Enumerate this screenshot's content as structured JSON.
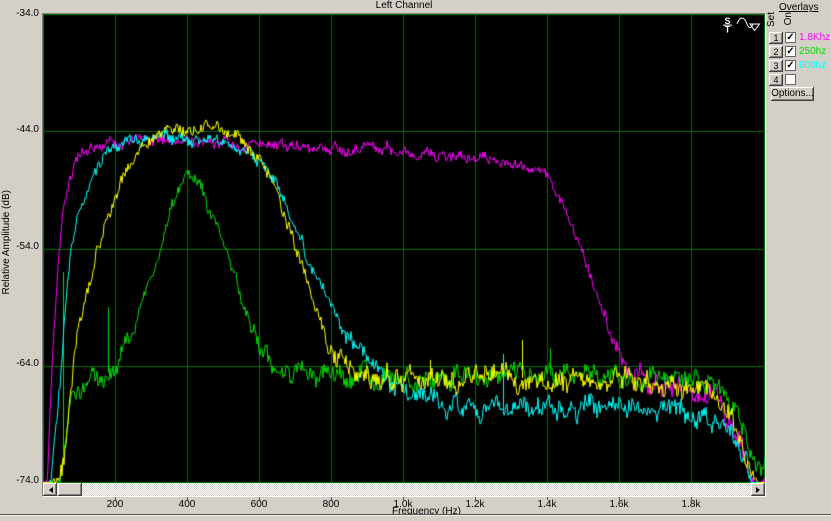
{
  "title": "Left Channel",
  "axes": {
    "y_label": "Relative Amplitude (dB)",
    "x_label": "Frequency (Hz)",
    "y_ticks": [
      "-34.0",
      "-44.0",
      "-54.0",
      "-64.0",
      "-74.0"
    ],
    "x_ticks": [
      "200",
      "400",
      "600",
      "800",
      "1.0k",
      "1.2k",
      "1.4k",
      "1.6k",
      "1.8k"
    ]
  },
  "overlays_panel": {
    "header": "Overlays",
    "col_set": "Set",
    "col_on": "On",
    "rows": [
      {
        "num": "1",
        "checked": true,
        "label": "1.8Khz",
        "color": "#ff00ff"
      },
      {
        "num": "2",
        "checked": true,
        "label": "250hz",
        "color": "#00dd00"
      },
      {
        "num": "3",
        "checked": true,
        "label": "600hz",
        "color": "#00ffff"
      },
      {
        "num": "4",
        "checked": false,
        "label": "",
        "color": ""
      }
    ],
    "options_button": "Options..."
  },
  "chart_data": {
    "type": "line",
    "title": "Left Channel",
    "xlabel": "Frequency (Hz)",
    "ylabel": "Relative Amplitude (dB)",
    "xlim": [
      0,
      2005
    ],
    "ylim": [
      -74,
      -34
    ],
    "grid_color": "#007000",
    "x_gridlines": [
      200,
      400,
      600,
      800,
      1000,
      1200,
      1400,
      1600,
      1800
    ],
    "y_gridlines": [
      -44,
      -54,
      -64
    ],
    "series": [
      {
        "name": "1.8Khz",
        "color": "#ff00ff",
        "seed": 11,
        "noise": 0.5,
        "anchors": [
          [
            0,
            -75
          ],
          [
            12,
            -74
          ],
          [
            20,
            -67
          ],
          [
            30,
            -61
          ],
          [
            42,
            -55
          ],
          [
            55,
            -51
          ],
          [
            70,
            -48.5
          ],
          [
            85,
            -47
          ],
          [
            100,
            -46.2
          ],
          [
            130,
            -45.6
          ],
          [
            160,
            -45.2
          ],
          [
            200,
            -45
          ],
          [
            260,
            -44.8
          ],
          [
            330,
            -44.7
          ],
          [
            400,
            -44.9
          ],
          [
            500,
            -45
          ],
          [
            600,
            -45.2
          ],
          [
            700,
            -45.4
          ],
          [
            800,
            -45.4
          ],
          [
            900,
            -45.3
          ],
          [
            1000,
            -45.6
          ],
          [
            1100,
            -45.9
          ],
          [
            1200,
            -46.2
          ],
          [
            1300,
            -46.6
          ],
          [
            1360,
            -47
          ],
          [
            1410,
            -48.2
          ],
          [
            1450,
            -50.5
          ],
          [
            1480,
            -53
          ],
          [
            1510,
            -55.5
          ],
          [
            1540,
            -58
          ],
          [
            1575,
            -61
          ],
          [
            1610,
            -63.5
          ],
          [
            1645,
            -65
          ],
          [
            1700,
            -65.6
          ],
          [
            1760,
            -65.9
          ],
          [
            1820,
            -66.3
          ],
          [
            1870,
            -67
          ],
          [
            1905,
            -68.5
          ],
          [
            1935,
            -70.5
          ],
          [
            1955,
            -72.5
          ],
          [
            1970,
            -74.5
          ],
          [
            2010,
            -75
          ]
        ],
        "spikes": []
      },
      {
        "name": "250hz",
        "color": "#00dd00",
        "seed": 22,
        "noise": 0.55,
        "anchors": [
          [
            0,
            -75
          ],
          [
            48,
            -74
          ],
          [
            58,
            -71
          ],
          [
            70,
            -67.5
          ],
          [
            85,
            -65.8
          ],
          [
            110,
            -65.3
          ],
          [
            140,
            -65
          ],
          [
            170,
            -64.8
          ],
          [
            200,
            -64.2
          ],
          [
            230,
            -62.3
          ],
          [
            260,
            -60
          ],
          [
            290,
            -57.5
          ],
          [
            320,
            -55
          ],
          [
            345,
            -52
          ],
          [
            370,
            -49.5
          ],
          [
            390,
            -48
          ],
          [
            405,
            -47.3
          ],
          [
            425,
            -47.8
          ],
          [
            450,
            -49.5
          ],
          [
            475,
            -51.5
          ],
          [
            500,
            -53.5
          ],
          [
            525,
            -55.5
          ],
          [
            550,
            -58
          ],
          [
            575,
            -60.5
          ],
          [
            600,
            -62.3
          ],
          [
            630,
            -63.8
          ],
          [
            665,
            -64.6
          ],
          [
            720,
            -64.9
          ],
          [
            800,
            -65
          ],
          [
            900,
            -64.9
          ],
          [
            1000,
            -65
          ],
          [
            1100,
            -64.9
          ],
          [
            1200,
            -65.1
          ],
          [
            1300,
            -64.9
          ],
          [
            1400,
            -64.8
          ],
          [
            1500,
            -64.9
          ],
          [
            1600,
            -64.9
          ],
          [
            1700,
            -65
          ],
          [
            1780,
            -65.2
          ],
          [
            1840,
            -65.6
          ],
          [
            1890,
            -66.5
          ],
          [
            1925,
            -68
          ],
          [
            1950,
            -70
          ],
          [
            1975,
            -72
          ],
          [
            2010,
            -72.5
          ]
        ],
        "spikes": [
          [
            56,
            -56
          ],
          [
            181,
            -59
          ],
          [
            1408,
            -62.5
          ]
        ]
      },
      {
        "name": "600hz",
        "color": "#00ffff",
        "seed": 33,
        "noise": 0.5,
        "anchors": [
          [
            0,
            -75
          ],
          [
            22,
            -74
          ],
          [
            35,
            -69
          ],
          [
            50,
            -64
          ],
          [
            65,
            -58
          ],
          [
            80,
            -54
          ],
          [
            95,
            -51.5
          ],
          [
            115,
            -49.5
          ],
          [
            140,
            -48
          ],
          [
            170,
            -46.3
          ],
          [
            200,
            -45.4
          ],
          [
            240,
            -45
          ],
          [
            280,
            -44.8
          ],
          [
            330,
            -44.6
          ],
          [
            380,
            -44.5
          ],
          [
            430,
            -44.6
          ],
          [
            480,
            -44.8
          ],
          [
            530,
            -45.1
          ],
          [
            570,
            -45.6
          ],
          [
            610,
            -46.8
          ],
          [
            645,
            -48.5
          ],
          [
            680,
            -50.8
          ],
          [
            715,
            -53.3
          ],
          [
            750,
            -55.8
          ],
          [
            785,
            -58
          ],
          [
            820,
            -60
          ],
          [
            855,
            -61.8
          ],
          [
            890,
            -63.2
          ],
          [
            930,
            -64.6
          ],
          [
            980,
            -65.9
          ],
          [
            1040,
            -66.8
          ],
          [
            1100,
            -67.3
          ],
          [
            1200,
            -67.6
          ],
          [
            1300,
            -67.8
          ],
          [
            1400,
            -67.5
          ],
          [
            1500,
            -67.8
          ],
          [
            1600,
            -67.6
          ],
          [
            1700,
            -67.8
          ],
          [
            1780,
            -67.9
          ],
          [
            1840,
            -68.2
          ],
          [
            1890,
            -69
          ],
          [
            1925,
            -70.5
          ],
          [
            1950,
            -72
          ],
          [
            1970,
            -74.5
          ],
          [
            2010,
            -75
          ]
        ],
        "spikes": [
          [
            1278,
            -63
          ]
        ]
      },
      {
        "name": "",
        "color": "#ffff00",
        "seed": 44,
        "noise": 0.55,
        "anchors": [
          [
            0,
            -75
          ],
          [
            40,
            -74.5
          ],
          [
            60,
            -72
          ],
          [
            75,
            -66
          ],
          [
            90,
            -62.5
          ],
          [
            105,
            -60
          ],
          [
            125,
            -57.5
          ],
          [
            150,
            -54.5
          ],
          [
            175,
            -51.8
          ],
          [
            200,
            -49.5
          ],
          [
            230,
            -47.5
          ],
          [
            260,
            -46
          ],
          [
            290,
            -45
          ],
          [
            320,
            -44.2
          ],
          [
            360,
            -43.9
          ],
          [
            400,
            -43.7
          ],
          [
            440,
            -43.6
          ],
          [
            480,
            -43.8
          ],
          [
            520,
            -44.2
          ],
          [
            560,
            -44.9
          ],
          [
            600,
            -46.3
          ],
          [
            630,
            -48
          ],
          [
            665,
            -50.5
          ],
          [
            700,
            -53.5
          ],
          [
            735,
            -57
          ],
          [
            770,
            -60
          ],
          [
            805,
            -62.5
          ],
          [
            840,
            -64
          ],
          [
            880,
            -64.8
          ],
          [
            950,
            -65.1
          ],
          [
            1100,
            -65.2
          ],
          [
            1250,
            -65
          ],
          [
            1400,
            -65.1
          ],
          [
            1550,
            -65.2
          ],
          [
            1700,
            -65.4
          ],
          [
            1790,
            -65.7
          ],
          [
            1850,
            -66.3
          ],
          [
            1900,
            -67.8
          ],
          [
            1935,
            -70
          ],
          [
            1960,
            -72.5
          ],
          [
            1975,
            -74.5
          ],
          [
            2010,
            -75
          ]
        ],
        "spikes": [
          [
            1075,
            -63.5
          ],
          [
            1331,
            -61.8
          ]
        ]
      }
    ]
  }
}
